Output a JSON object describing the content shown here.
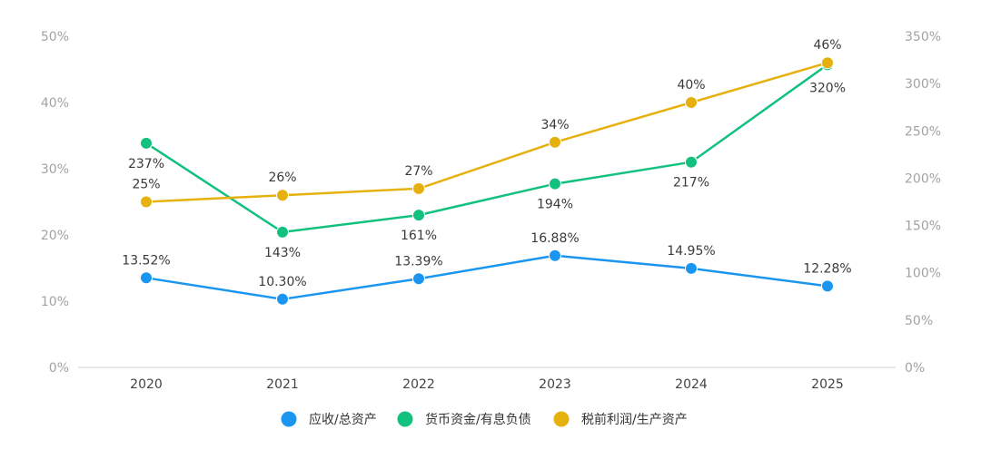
{
  "chart_data": {
    "type": "line",
    "title": "",
    "categories": [
      "2020",
      "2021",
      "2022",
      "2023",
      "2024",
      "2025"
    ],
    "y_left": {
      "range": [
        0,
        50
      ],
      "ticks": [
        "0%",
        "10%",
        "20%",
        "30%",
        "40%",
        "50%"
      ]
    },
    "y_right": {
      "range": [
        0,
        350
      ],
      "ticks": [
        "0%",
        "50%",
        "100%",
        "150%",
        "200%",
        "250%",
        "300%",
        "350%"
      ]
    },
    "grid": false,
    "legend_position": "bottom",
    "series": [
      {
        "name": "应收/总资产",
        "axis": "left",
        "color": "#1a96f0",
        "values": [
          13.52,
          10.3,
          13.39,
          16.88,
          14.95,
          12.28
        ],
        "labels": [
          "13.52%",
          "10.30%",
          "13.39%",
          "16.88%",
          "14.95%",
          "12.28%"
        ]
      },
      {
        "name": "货币资金/有息负债",
        "axis": "right",
        "color": "#13c17f",
        "values": [
          237,
          143,
          161,
          194,
          217,
          320
        ],
        "labels": [
          "237%",
          "143%",
          "161%",
          "194%",
          "217%",
          "320%"
        ]
      },
      {
        "name": "税前利润/生产资产",
        "axis": "left",
        "color": "#e6b10e",
        "values": [
          25,
          26,
          27,
          34,
          40,
          46
        ],
        "labels": [
          "25%",
          "26%",
          "27%",
          "34%",
          "40%",
          "46%"
        ]
      }
    ]
  }
}
